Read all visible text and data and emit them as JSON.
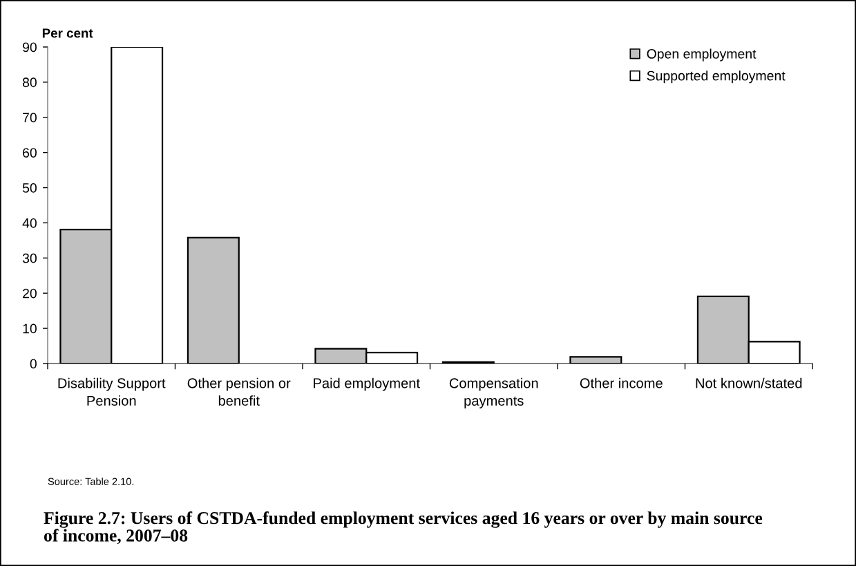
{
  "chart_data": {
    "type": "bar",
    "title": "Figure 2.7: Users of CSTDA-funded employment services aged 16 years or over by main source\nof income, 2007–08",
    "ylabel": "Per cent",
    "annotations": [
      "Source: Table 2.10."
    ],
    "categories": [
      "Disability Support\nPension",
      "Other pension or\nbenefit",
      "Paid employment",
      "Compensation\npayments",
      "Other income",
      "Not known/stated"
    ],
    "series": [
      {
        "name": "Open employment",
        "color": "#c0c0c0",
        "values": [
          38.1,
          35.8,
          4.2,
          0.4,
          1.9,
          19.1
        ]
      },
      {
        "name": "Supported employment",
        "color": "#ffffff",
        "values": [
          90,
          null,
          3.1,
          null,
          null,
          6.2
        ]
      }
    ],
    "ylim": [
      0,
      90
    ],
    "yticks": [
      0,
      10,
      20,
      30,
      40,
      50,
      60,
      70,
      80,
      90
    ],
    "legend": "top right"
  }
}
